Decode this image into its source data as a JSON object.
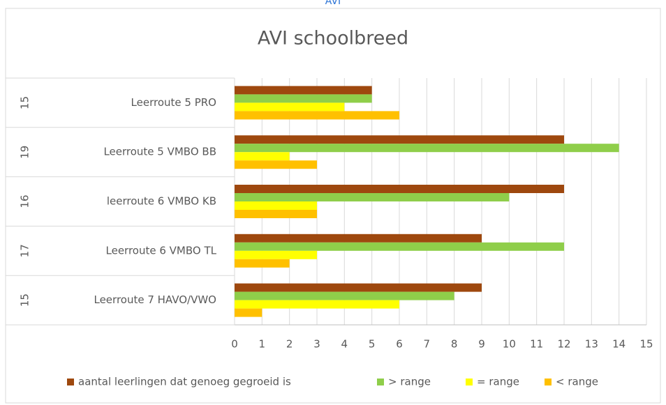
{
  "header": "AVI",
  "chart_data": {
    "type": "bar",
    "orientation": "horizontal",
    "title": "AVI schoolbreed",
    "categories": [
      "Leerroute 5 PRO",
      "Leerroute 5 VMBO BB",
      "leerroute 6 VMBO KB",
      "Leerroute 6 VMBO TL",
      "Leerroute 7 HAVO/VWO"
    ],
    "group_labels": [
      "15",
      "19",
      "16",
      "17",
      "15"
    ],
    "series": [
      {
        "name": "aantal leerlingen dat genoeg gegroeid is",
        "color": "#9e480e",
        "values": [
          5,
          12,
          12,
          9,
          9
        ]
      },
      {
        "name": "> range",
        "color": "#8fce4a",
        "values": [
          5,
          14,
          10,
          12,
          8
        ]
      },
      {
        "name": "= range",
        "color": "#ffff00",
        "values": [
          4,
          2,
          3,
          3,
          6
        ]
      },
      {
        "name": "< range",
        "color": "#ffc000",
        "values": [
          6,
          3,
          3,
          2,
          1
        ]
      }
    ],
    "xlim": [
      0,
      15
    ],
    "xticks": [
      0,
      1,
      2,
      3,
      4,
      5,
      6,
      7,
      8,
      9,
      10,
      11,
      12,
      13,
      14,
      15
    ],
    "grid": true,
    "legend": "bottom"
  }
}
